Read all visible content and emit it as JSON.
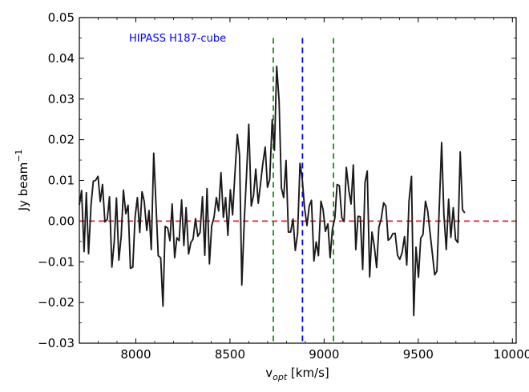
{
  "chart_data": {
    "type": "line",
    "title": "",
    "annotation": {
      "text": "HIPASS H187-cube",
      "color": "#0000ff"
    },
    "xlabel": {
      "prefix": "v",
      "subscript": "opt",
      "suffix": " [km/s]"
    },
    "ylabel": {
      "text": "Jy beam",
      "superscript": "−1"
    },
    "xlim": [
      7700,
      10020
    ],
    "ylim": [
      -0.03,
      0.05
    ],
    "xticks": [
      8000,
      8500,
      9000,
      9500,
      10000
    ],
    "xtick_labels": [
      "8000",
      "8500",
      "9000",
      "9500",
      "10000"
    ],
    "yticks": [
      -0.03,
      -0.02,
      -0.01,
      0.0,
      0.01,
      0.02,
      0.03,
      0.04,
      0.05
    ],
    "ytick_labels": [
      "−0.03",
      "−0.02",
      "−0.01",
      "0.00",
      "0.01",
      "0.02",
      "0.03",
      "0.04",
      "0.05"
    ],
    "grid": false,
    "reference_lines": [
      {
        "name": "zero-level",
        "orientation": "horizontal",
        "value": 0.0,
        "color": "#e8231e",
        "style": "dashed"
      },
      {
        "name": "window-low",
        "orientation": "vertical",
        "value": 8730,
        "color": "#1a8c1a",
        "style": "dashed"
      },
      {
        "name": "systemic-velocity",
        "orientation": "vertical",
        "value": 8885,
        "color": "#0000ff",
        "style": "dashed"
      },
      {
        "name": "window-high",
        "orientation": "vertical",
        "value": 9050,
        "color": "#1a8c1a",
        "style": "dashed"
      }
    ],
    "series": [
      {
        "name": "spectrum",
        "color": "#1a1a1a",
        "points": [
          [
            7700,
            0.004
          ],
          [
            7712,
            0.0075
          ],
          [
            7725,
            -0.0075
          ],
          [
            7737,
            0.007
          ],
          [
            7749,
            -0.008
          ],
          [
            7762,
            0.004
          ],
          [
            7774,
            0.0098
          ],
          [
            7786,
            0.01
          ],
          [
            7799,
            0.011
          ],
          [
            7811,
            0.0048
          ],
          [
            7823,
            0.009
          ],
          [
            7836,
            -0.0002
          ],
          [
            7848,
            0.0004
          ],
          [
            7860,
            0.006
          ],
          [
            7873,
            -0.0113
          ],
          [
            7885,
            -0.0051
          ],
          [
            7897,
            0.0057
          ],
          [
            7910,
            -0.0096
          ],
          [
            7922,
            -0.0038
          ],
          [
            7934,
            0.0076
          ],
          [
            7947,
            0.0018
          ],
          [
            7959,
            0.0039
          ],
          [
            7971,
            -0.0116
          ],
          [
            7984,
            -0.0113
          ],
          [
            7996,
            0.0009
          ],
          [
            8008,
            0.0058
          ],
          [
            8021,
            -0.0028
          ],
          [
            8033,
            0.0072
          ],
          [
            8045,
            0.0048
          ],
          [
            8058,
            -0.0023
          ],
          [
            8070,
            0.0026
          ],
          [
            8082,
            -0.007
          ],
          [
            8095,
            0.0167
          ],
          [
            8107,
            0.0042
          ],
          [
            8119,
            -0.0085
          ],
          [
            8132,
            -0.009
          ],
          [
            8144,
            -0.0209
          ],
          [
            8156,
            -0.0013
          ],
          [
            8169,
            -0.0017
          ],
          [
            8181,
            -0.0048
          ],
          [
            8193,
            0.0042
          ],
          [
            8206,
            -0.009
          ],
          [
            8218,
            -0.0041
          ],
          [
            8230,
            -0.0048
          ],
          [
            8243,
            0.0052
          ],
          [
            8255,
            -0.006
          ],
          [
            8267,
            0.0033
          ],
          [
            8280,
            -0.0081
          ],
          [
            8292,
            -0.0053
          ],
          [
            8304,
            -0.0044
          ],
          [
            8317,
            0.0006
          ],
          [
            8329,
            -0.0037
          ],
          [
            8341,
            -0.0028
          ],
          [
            8354,
            0.006
          ],
          [
            8366,
            -0.0084
          ],
          [
            8378,
            0.008
          ],
          [
            8391,
            -0.0105
          ],
          [
            8403,
            -0.0012
          ],
          [
            8415,
            0.0009
          ],
          [
            8428,
            0.0058
          ],
          [
            8440,
            0.0025
          ],
          [
            8452,
            0.0119
          ],
          [
            8465,
            0.0009
          ],
          [
            8477,
            0.0058
          ],
          [
            8489,
            -0.0035
          ],
          [
            8502,
            0.0077
          ],
          [
            8514,
            0.0015
          ],
          [
            8526,
            0.0113
          ],
          [
            8539,
            0.0213
          ],
          [
            8551,
            0.0162
          ],
          [
            8563,
            -0.0157
          ],
          [
            8576,
            0.0002
          ],
          [
            8588,
            0.0114
          ],
          [
            8600,
            0.0238
          ],
          [
            8613,
            0.0037
          ],
          [
            8625,
            0.0063
          ],
          [
            8637,
            0.0128
          ],
          [
            8650,
            0.0044
          ],
          [
            8662,
            0.0091
          ],
          [
            8674,
            0.014
          ],
          [
            8687,
            0.0182
          ],
          [
            8699,
            0.0083
          ],
          [
            8711,
            0.0102
          ],
          [
            8724,
            0.0249
          ],
          [
            8736,
            0.0174
          ],
          [
            8748,
            0.038
          ],
          [
            8761,
            0.0296
          ],
          [
            8773,
            0.0081
          ],
          [
            8785,
            0.0058
          ],
          [
            8798,
            0.0149
          ],
          [
            8810,
            -0.0027
          ],
          [
            8822,
            -0.0027
          ],
          [
            8835,
            0.0005
          ],
          [
            8847,
            -0.0072
          ],
          [
            8859,
            -0.0031
          ],
          [
            8872,
            0.0142
          ],
          [
            8884,
            0.0103
          ],
          [
            8896,
            0.0032
          ],
          [
            8909,
            -0.0011
          ],
          [
            8921,
            0.0037
          ],
          [
            8933,
            0.0051
          ],
          [
            8946,
            -0.0098
          ],
          [
            8958,
            -0.0051
          ],
          [
            8970,
            -0.0085
          ],
          [
            8983,
            0.0049
          ],
          [
            8995,
            0.0027
          ],
          [
            9007,
            -0.0025
          ],
          [
            9020,
            -0.0007
          ],
          [
            9032,
            -0.009
          ],
          [
            9044,
            -0.002
          ],
          [
            9057,
            0.0008
          ],
          [
            9069,
            0.009
          ],
          [
            9081,
            0.0087
          ],
          [
            9094,
            0.0008
          ],
          [
            9106,
            -0.0001
          ],
          [
            9118,
            0.0132
          ],
          [
            9131,
            0.0076
          ],
          [
            9143,
            0.0042
          ],
          [
            9155,
            0.0138
          ],
          [
            9168,
            -0.007
          ],
          [
            9180,
            0.0012
          ],
          [
            9192,
            0.0011
          ],
          [
            9205,
            -0.0119
          ],
          [
            9217,
            0.0095
          ],
          [
            9229,
            0.0123
          ],
          [
            9242,
            -0.0137
          ],
          [
            9254,
            -0.0027
          ],
          [
            9266,
            -0.006
          ],
          [
            9279,
            -0.0114
          ],
          [
            9291,
            -0.0015
          ],
          [
            9303,
            0.0005
          ],
          [
            9316,
            0.0045
          ],
          [
            9328,
            0.0037
          ],
          [
            9340,
            -0.0047
          ],
          [
            9353,
            -0.0042
          ],
          [
            9365,
            -0.0031
          ],
          [
            9377,
            -0.003
          ],
          [
            9390,
            -0.0084
          ],
          [
            9402,
            -0.0094
          ],
          [
            9414,
            -0.0078
          ],
          [
            9427,
            -0.0038
          ],
          [
            9439,
            -0.0108
          ],
          [
            9451,
            0.0049
          ],
          [
            9464,
            0.011
          ],
          [
            9476,
            -0.0232
          ],
          [
            9488,
            -0.0064
          ],
          [
            9501,
            -0.0138
          ],
          [
            9513,
            -0.0042
          ],
          [
            9525,
            -0.0033
          ],
          [
            9538,
            0.0049
          ],
          [
            9550,
            0.0025
          ],
          [
            9562,
            -0.0026
          ],
          [
            9575,
            -0.0081
          ],
          [
            9587,
            -0.0132
          ],
          [
            9599,
            -0.0123
          ],
          [
            9612,
            0.0042
          ],
          [
            9624,
            0.0193
          ],
          [
            9636,
            0.0017
          ],
          [
            9649,
            -0.007
          ],
          [
            9661,
            0.0054
          ],
          [
            9673,
            -0.004
          ],
          [
            9686,
            0.0033
          ],
          [
            9698,
            -0.0045
          ],
          [
            9710,
            -0.0053
          ],
          [
            9723,
            0.017
          ],
          [
            9735,
            0.0028
          ],
          [
            9747,
            0.002
          ]
        ]
      }
    ]
  }
}
